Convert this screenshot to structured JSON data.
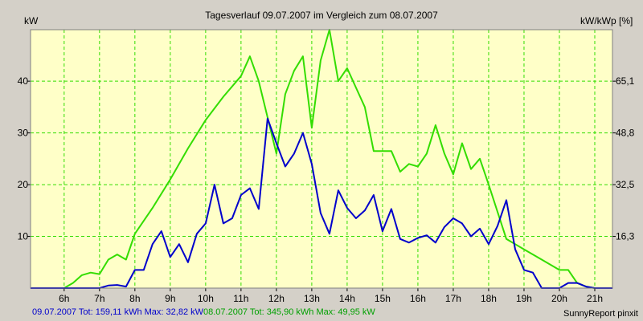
{
  "chart_data": {
    "type": "line",
    "title": "Tagesverlauf 09.07.2007 im Vergleich zum 08.07.2007",
    "ylabel_left": "kW",
    "ylabel_right": "kW/kWp [%]",
    "xlim": [
      5.05,
      21.5
    ],
    "ylim_left": [
      0,
      49.95
    ],
    "x_ticks": [
      6,
      7,
      8,
      9,
      10,
      11,
      12,
      13,
      14,
      15,
      16,
      17,
      18,
      19,
      20,
      21
    ],
    "x_tick_labels": [
      "6h",
      "7h",
      "8h",
      "9h",
      "10h",
      "11h",
      "12h",
      "13h",
      "14h",
      "15h",
      "16h",
      "17h",
      "18h",
      "19h",
      "20h",
      "21h"
    ],
    "y_left_ticks": [
      10,
      20,
      30,
      40
    ],
    "y_left_tick_labels": [
      "10",
      "20",
      "30",
      "40"
    ],
    "y_right_tick_labels": [
      "16,3",
      "32,5",
      "48,8",
      "65,1"
    ],
    "grid": true,
    "series": [
      {
        "key": "blue",
        "color": "#0000cc",
        "points": [
          [
            5.05,
            0
          ],
          [
            6,
            0
          ],
          [
            6.5,
            0
          ],
          [
            7,
            0
          ],
          [
            7.25,
            0.5
          ],
          [
            7.5,
            0.6
          ],
          [
            7.75,
            0.3
          ],
          [
            8,
            3.5
          ],
          [
            8.25,
            3.5
          ],
          [
            8.5,
            8.5
          ],
          [
            8.75,
            11
          ],
          [
            9,
            6
          ],
          [
            9.25,
            8.5
          ],
          [
            9.5,
            5
          ],
          [
            9.75,
            10.5
          ],
          [
            10,
            12.5
          ],
          [
            10.25,
            20
          ],
          [
            10.5,
            12.5
          ],
          [
            10.75,
            13.5
          ],
          [
            11,
            18
          ],
          [
            11.25,
            19.3
          ],
          [
            11.5,
            15.3
          ],
          [
            11.75,
            32.8
          ],
          [
            12,
            28
          ],
          [
            12.25,
            23.5
          ],
          [
            12.5,
            26
          ],
          [
            12.75,
            30
          ],
          [
            13,
            24
          ],
          [
            13.25,
            14.5
          ],
          [
            13.5,
            10.5
          ],
          [
            13.75,
            18.9
          ],
          [
            14,
            15.5
          ],
          [
            14.25,
            13.5
          ],
          [
            14.5,
            15
          ],
          [
            14.75,
            18
          ],
          [
            15,
            11
          ],
          [
            15.25,
            15.3
          ],
          [
            15.5,
            9.5
          ],
          [
            15.75,
            8.8
          ],
          [
            16,
            9.7
          ],
          [
            16.25,
            10.2
          ],
          [
            16.5,
            8.8
          ],
          [
            16.75,
            11.8
          ],
          [
            17,
            13.5
          ],
          [
            17.25,
            12.5
          ],
          [
            17.5,
            10
          ],
          [
            17.75,
            11.5
          ],
          [
            18,
            8.5
          ],
          [
            18.25,
            12
          ],
          [
            18.5,
            17
          ],
          [
            18.75,
            7.5
          ],
          [
            19,
            3.5
          ],
          [
            19.25,
            3
          ],
          [
            19.5,
            0
          ],
          [
            19.75,
            0
          ],
          [
            20,
            0
          ],
          [
            20.25,
            1
          ],
          [
            20.5,
            1
          ],
          [
            20.75,
            0.3
          ],
          [
            21,
            0
          ],
          [
            21.5,
            0
          ]
        ]
      },
      {
        "key": "green",
        "color": "#33dd00",
        "points": [
          [
            5.05,
            0
          ],
          [
            6,
            0
          ],
          [
            6.25,
            1
          ],
          [
            6.5,
            2.5
          ],
          [
            6.75,
            3
          ],
          [
            7,
            2.7
          ],
          [
            7.25,
            5.5
          ],
          [
            7.5,
            6.5
          ],
          [
            7.75,
            5.5
          ],
          [
            8,
            10.5
          ],
          [
            8.5,
            15.5
          ],
          [
            9,
            21
          ],
          [
            9.5,
            27
          ],
          [
            10,
            32.5
          ],
          [
            10.5,
            37
          ],
          [
            11,
            41
          ],
          [
            11.25,
            44.8
          ],
          [
            11.5,
            40
          ],
          [
            12,
            26
          ],
          [
            12.25,
            37.5
          ],
          [
            12.5,
            42
          ],
          [
            12.75,
            44.8
          ],
          [
            13,
            31
          ],
          [
            13.25,
            44
          ],
          [
            13.5,
            49.95
          ],
          [
            13.75,
            40
          ],
          [
            14,
            42.5
          ],
          [
            14.5,
            35
          ],
          [
            14.75,
            26.5
          ],
          [
            15,
            26.5
          ],
          [
            15.25,
            26.5
          ],
          [
            15.5,
            22.5
          ],
          [
            15.75,
            24
          ],
          [
            16,
            23.5
          ],
          [
            16.25,
            26
          ],
          [
            16.5,
            31.5
          ],
          [
            16.75,
            26
          ],
          [
            17,
            22
          ],
          [
            17.25,
            28
          ],
          [
            17.5,
            23
          ],
          [
            17.75,
            25
          ],
          [
            18,
            20
          ],
          [
            18.5,
            9.5
          ],
          [
            19,
            7.5
          ],
          [
            19.5,
            5.5
          ],
          [
            20,
            3.5
          ],
          [
            20.25,
            3.5
          ],
          [
            20.5,
            1
          ],
          [
            20.75,
            0.3
          ],
          [
            21,
            0
          ],
          [
            21.5,
            0
          ]
        ]
      }
    ]
  },
  "footer": {
    "blue_text": "09.07.2007 Tot: 159,11 kWh Max: 32,82 kW",
    "green_text": "08.07.2007 Tot: 345,90 kWh Max: 49,95 kW",
    "brand": "SunnyReport pinxit"
  }
}
